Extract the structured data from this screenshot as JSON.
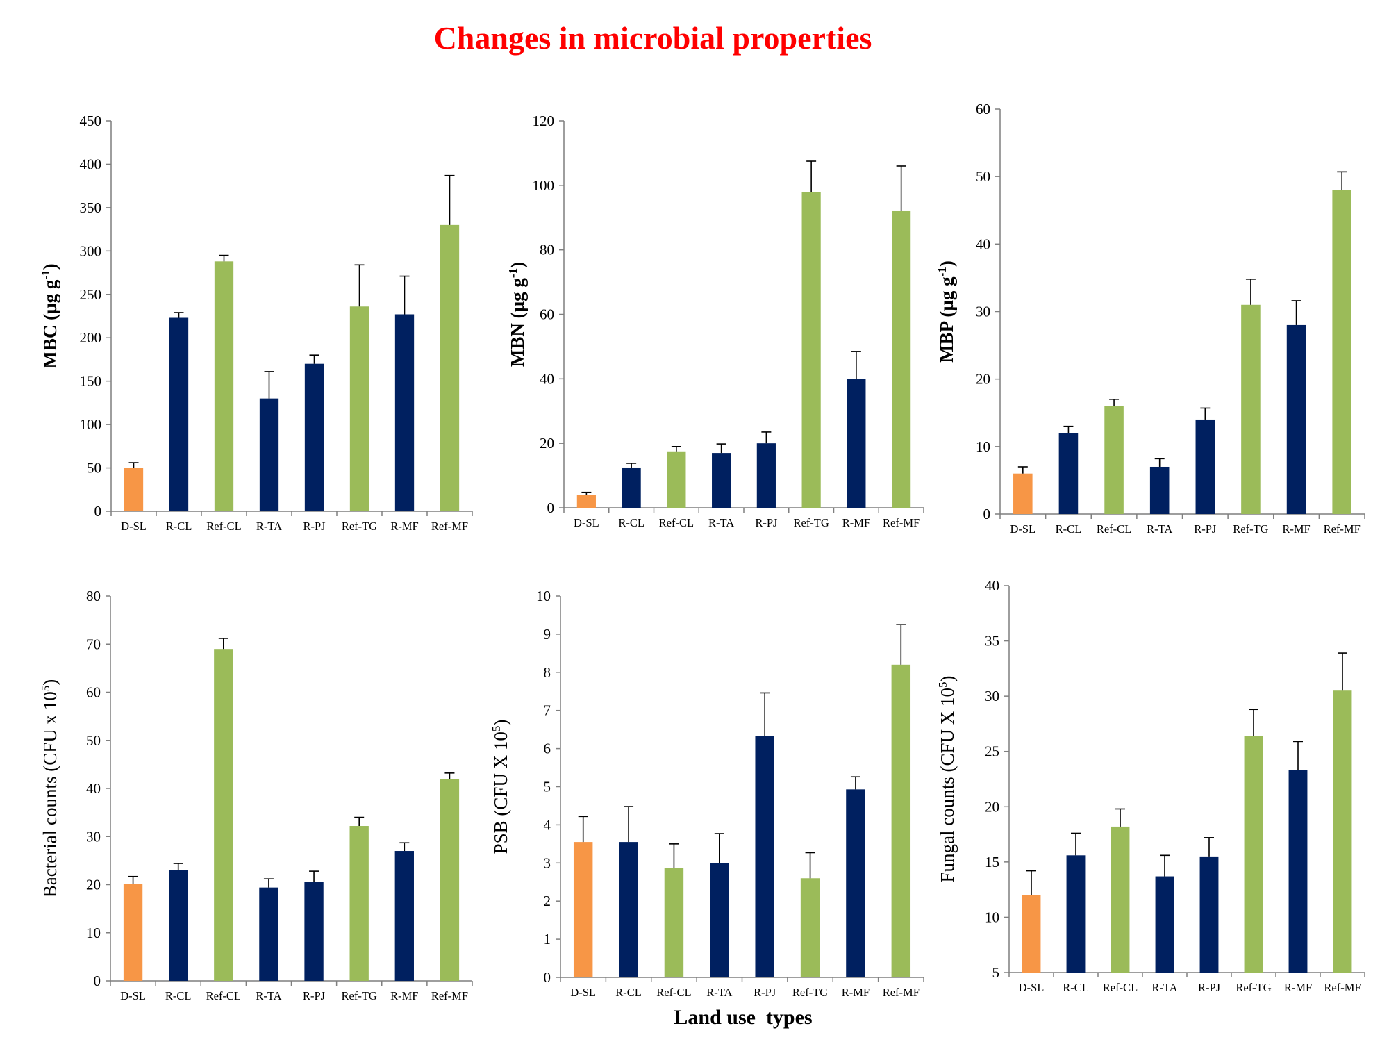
{
  "title": "Changes in microbial properties",
  "x_axis_label": "Land use  types",
  "colors": {
    "title": "#ff0000",
    "degraded": "#f79646",
    "restored": "#002060",
    "reference": "#9bbb59",
    "axis": "#7f7f7f",
    "error_bar": "#000000"
  },
  "chart_data": [
    {
      "type": "bar",
      "ylabel": "MBC (µg g-1)",
      "ylabel_main": "MBC (µg g",
      "ylabel_sup": "-1",
      "ylabel_end": ")",
      "ylim": [
        0,
        450
      ],
      "yticks": [
        0,
        50,
        100,
        150,
        200,
        250,
        300,
        350,
        400,
        450
      ],
      "categories": [
        "D-SL",
        "R-CL",
        "Ref-CL",
        "R-TA",
        "R-PJ",
        "Ref-TG",
        "R-MF",
        "Ref-MF"
      ],
      "values": [
        50,
        223,
        288,
        130,
        170,
        236,
        227,
        330
      ],
      "errors": [
        6,
        6,
        7,
        31,
        10,
        48,
        44,
        57
      ],
      "groups": [
        "degraded",
        "restored",
        "reference",
        "restored",
        "restored",
        "reference",
        "restored",
        "reference"
      ]
    },
    {
      "type": "bar",
      "ylabel": "MBN (µg g-1)",
      "ylabel_main": "MBN (µg g",
      "ylabel_sup": "-1",
      "ylabel_end": ")",
      "ylim": [
        0,
        120
      ],
      "yticks": [
        0,
        20,
        40,
        60,
        80,
        100,
        120
      ],
      "categories": [
        "D-SL",
        "R-CL",
        "Ref-CL",
        "R-TA",
        "R-PJ",
        "Ref-TG",
        "R-MF",
        "Ref-MF"
      ],
      "values": [
        4,
        12.5,
        17.5,
        17,
        20,
        98,
        40,
        92
      ],
      "errors": [
        0.8,
        1.3,
        1.5,
        2.8,
        3.5,
        9.5,
        8.5,
        14
      ],
      "groups": [
        "degraded",
        "restored",
        "reference",
        "restored",
        "restored",
        "reference",
        "restored",
        "reference"
      ]
    },
    {
      "type": "bar",
      "ylabel": "MBP (µg g-1)",
      "ylabel_main": "MBP (µg g",
      "ylabel_sup": "-1",
      "ylabel_end": ")",
      "ylim": [
        0,
        60
      ],
      "yticks": [
        0,
        10,
        20,
        30,
        40,
        50,
        60
      ],
      "categories": [
        "D-SL",
        "R-CL",
        "Ref-CL",
        "R-TA",
        "R-PJ",
        "Ref-TG",
        "R-MF",
        "Ref-MF"
      ],
      "values": [
        6,
        12,
        16,
        7,
        14,
        31,
        28,
        48
      ],
      "errors": [
        1,
        1,
        1,
        1.2,
        1.7,
        3.8,
        3.6,
        2.7
      ],
      "groups": [
        "degraded",
        "restored",
        "reference",
        "restored",
        "restored",
        "reference",
        "restored",
        "reference"
      ]
    },
    {
      "type": "bar",
      "ylabel": "Bacterial counts (CFU x 10^5)",
      "ylabel_main": "Bacterial counts (CFU x 10",
      "ylabel_sup": "5",
      "ylabel_end": ")",
      "ylim": [
        0,
        80
      ],
      "yticks": [
        0,
        10,
        20,
        30,
        40,
        50,
        60,
        70,
        80
      ],
      "categories": [
        "D-SL",
        "R-CL",
        "Ref-CL",
        "R-TA",
        "R-PJ",
        "Ref-TG",
        "R-MF",
        "Ref-MF"
      ],
      "values": [
        20.2,
        23,
        69,
        19.4,
        20.6,
        32.2,
        27,
        42
      ],
      "errors": [
        1.5,
        1.4,
        2.2,
        1.8,
        2.2,
        1.8,
        1.7,
        1.2
      ],
      "groups": [
        "degraded",
        "restored",
        "reference",
        "restored",
        "restored",
        "reference",
        "restored",
        "reference"
      ]
    },
    {
      "type": "bar",
      "ylabel": "PSB (CFU X 10^5)",
      "ylabel_main": "PSB (CFU X 10",
      "ylabel_sup": "5",
      "ylabel_end": ")",
      "ylim": [
        0,
        10
      ],
      "yticks": [
        0,
        1,
        2,
        3,
        4,
        5,
        6,
        7,
        8,
        9,
        10
      ],
      "categories": [
        "D-SL",
        "R-CL",
        "Ref-CL",
        "R-TA",
        "R-PJ",
        "Ref-TG",
        "R-MF",
        "Ref-MF"
      ],
      "values": [
        3.55,
        3.55,
        2.87,
        3.0,
        6.33,
        2.6,
        4.93,
        8.2
      ],
      "errors": [
        0.67,
        0.93,
        0.63,
        0.77,
        1.13,
        0.67,
        0.33,
        1.05
      ],
      "groups": [
        "degraded",
        "restored",
        "reference",
        "restored",
        "restored",
        "reference",
        "restored",
        "reference"
      ]
    },
    {
      "type": "bar",
      "ylabel": "Fungal counts (CFU X 10^5)",
      "ylabel_main": "Fungal counts (CFU X 10",
      "ylabel_sup": "5",
      "ylabel_end": ")",
      "ylim": [
        5,
        40
      ],
      "yticks": [
        5,
        10,
        15,
        20,
        25,
        30,
        35,
        40
      ],
      "categories": [
        "D-SL",
        "R-CL",
        "Ref-CL",
        "R-TA",
        "R-PJ",
        "Ref-TG",
        "R-MF",
        "Ref-MF"
      ],
      "values": [
        12,
        15.6,
        18.2,
        13.7,
        15.5,
        26.4,
        23.3,
        30.5
      ],
      "errors": [
        2.2,
        2,
        1.6,
        1.9,
        1.7,
        2.4,
        2.6,
        3.4
      ],
      "groups": [
        "degraded",
        "restored",
        "reference",
        "restored",
        "restored",
        "reference",
        "restored",
        "reference"
      ]
    }
  ]
}
